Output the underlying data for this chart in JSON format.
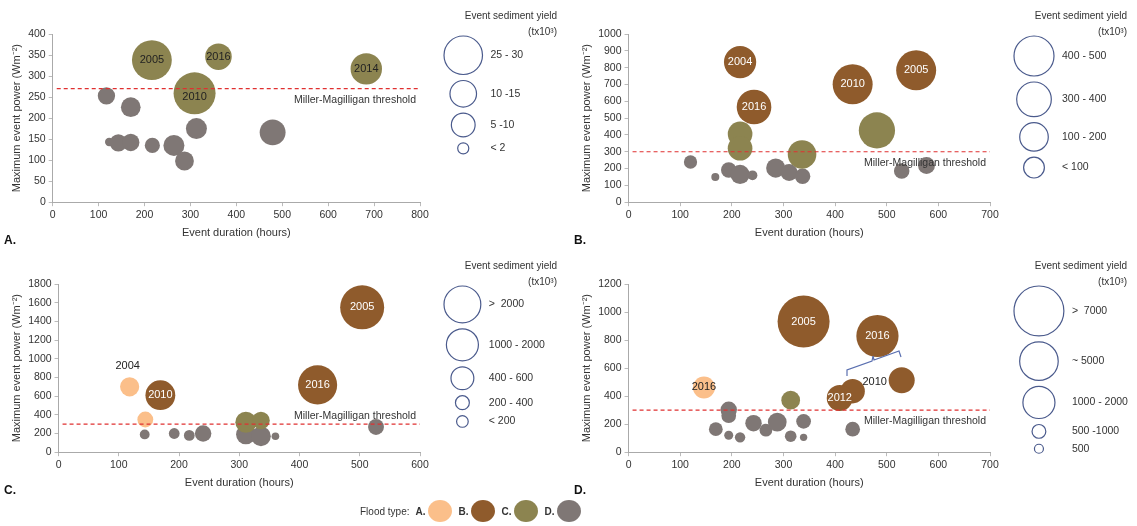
{
  "chart_data": [
    {
      "type": "bubble",
      "title": "A.",
      "xlabel": "Event duration (hours)",
      "ylabel": "Maximum event power (Wm⁻²)",
      "legend_title": "Event sediment yield (tx10³)",
      "xlim": [
        0,
        800
      ],
      "xticks": [
        0,
        100,
        200,
        300,
        400,
        500,
        600,
        700,
        800
      ],
      "ylim": [
        0,
        400
      ],
      "yticks": [
        0,
        50,
        100,
        150,
        200,
        250,
        300,
        350,
        400
      ],
      "marker": "circle",
      "ref_lines": [
        {
          "axis": "y",
          "value": 270,
          "label": "Miller-Magilligan threshold",
          "color": "#e03030",
          "line_style": "dashed"
        }
      ],
      "annotations": [
        {
          "text": "2005",
          "x": 216,
          "y": 338
        },
        {
          "text": "2016",
          "x": 361,
          "y": 346
        },
        {
          "text": "2014",
          "x": 683,
          "y": 317
        },
        {
          "text": "2010",
          "x": 309,
          "y": 250
        }
      ],
      "size_legend": [
        {
          "value": 0.84,
          "label": "25 - 30"
        },
        {
          "value": 0.4,
          "label": "10 -15"
        },
        {
          "value": 0.32,
          "label": "5 -10"
        },
        {
          "value": 0.07,
          "label": "< 2"
        }
      ],
      "series": [
        {
          "color": "#8c8450",
          "x": [
            216,
            361,
            683,
            309
          ],
          "values": [
            338,
            346,
            317,
            259
          ],
          "sizes": [
            0.9,
            0.4,
            0.56,
            1
          ]
        },
        {
          "color": "#7f7775",
          "x": [
            117,
            170,
            123,
            143,
            170,
            217,
            264,
            287,
            313,
            479
          ],
          "values": [
            253,
            226,
            143,
            141,
            142,
            135,
            135,
            98,
            175,
            166
          ],
          "sizes": [
            0.17,
            0.22,
            0.04,
            0.17,
            0.17,
            0.13,
            0.25,
            0.2,
            0.25,
            0.38
          ]
        }
      ]
    },
    {
      "type": "bubble",
      "title": "B.",
      "xlabel": "Event duration (hours)",
      "ylabel": "Maximum event power (Wm⁻²)",
      "legend_title": "Event sediment yield (tx10³)",
      "xlim": [
        0,
        700
      ],
      "xticks": [
        0,
        100,
        200,
        300,
        400,
        500,
        600,
        700
      ],
      "ylim": [
        0,
        1000
      ],
      "yticks": [
        0,
        100,
        200,
        300,
        400,
        500,
        600,
        700,
        800,
        900,
        1000
      ],
      "marker": "circle",
      "ref_lines": [
        {
          "axis": "y",
          "value": 300,
          "label": "Miller-Magilligan threshold",
          "color": "#e03030",
          "line_style": "dashed"
        }
      ],
      "annotations": [
        {
          "text": "2004",
          "x": 216,
          "y": 833
        },
        {
          "text": "2016",
          "x": 243,
          "y": 566
        },
        {
          "text": "2010",
          "x": 434,
          "y": 701
        },
        {
          "text": "2005",
          "x": 557,
          "y": 784
        }
      ],
      "size_legend": [
        {
          "value": 1,
          "label": "400 - 500"
        },
        {
          "value": 0.75,
          "label": "300 - 400"
        },
        {
          "value": 0.51,
          "label": "100 - 200"
        },
        {
          "value": 0.27,
          "label": "< 100"
        }
      ],
      "series": [
        {
          "color": "#8f5b2c",
          "x": [
            216,
            243,
            434,
            557
          ],
          "values": [
            833,
            566,
            701,
            784
          ],
          "sizes": [
            0.65,
            0.75,
            1,
            1
          ]
        },
        {
          "color": "#8c8450",
          "x": [
            216,
            216,
            336,
            481
          ],
          "values": [
            406,
            321,
            284,
            427
          ],
          "sizes": [
            0.38,
            0.38,
            0.51,
            0.82
          ]
        },
        {
          "color": "#7f7775",
          "x": [
            120,
            168,
            194,
            216,
            240,
            285,
            311,
            337,
            529,
            577
          ],
          "values": [
            239,
            150,
            192,
            165,
            160,
            203,
            177,
            154,
            186,
            218
          ],
          "sizes": [
            0.11,
            0.04,
            0.15,
            0.23,
            0.06,
            0.23,
            0.18,
            0.15,
            0.15,
            0.18
          ]
        }
      ]
    },
    {
      "type": "bubble",
      "title": "C.",
      "xlabel": "Event duration (hours)",
      "ylabel": "Maximum event power (Wm⁻²)",
      "legend_title": "Event sediment yield (tx10³)",
      "xlim": [
        0,
        600
      ],
      "xticks": [
        0,
        100,
        200,
        300,
        400,
        500,
        600
      ],
      "ylim": [
        0,
        1800
      ],
      "yticks": [
        0,
        200,
        400,
        600,
        800,
        1000,
        1200,
        1400,
        1600,
        1800
      ],
      "marker": "circle",
      "ref_lines": [
        {
          "axis": "y",
          "value": 300,
          "label": "Miller-Magilligan threshold",
          "color": "#e03030",
          "line_style": "dashed"
        }
      ],
      "annotations": [
        {
          "text": "2004",
          "x": 118,
          "y": 700
        },
        {
          "text": "2010",
          "x": 169,
          "y": 610
        },
        {
          "text": "2016",
          "x": 430,
          "y": 720
        },
        {
          "text": "2005",
          "x": 504,
          "y": 1550
        }
      ],
      "size_legend": [
        {
          "value": 0.7,
          "label": ">  2000"
        },
        {
          "value": 0.53,
          "label": "1000 - 2000"
        },
        {
          "value": 0.27,
          "label": "400 - 600"
        },
        {
          "value": 0.1,
          "label": "200 - 400"
        },
        {
          "value": 0.07,
          "label": "< 200"
        }
      ],
      "series": [
        {
          "color": "#fbbf8a",
          "x": [
            118,
            144
          ],
          "values": [
            700,
            350
          ],
          "sizes": [
            0.19,
            0.13
          ]
        },
        {
          "color": "#8f5b2c",
          "x": [
            169,
            430,
            504
          ],
          "values": [
            610,
            720,
            1550
          ],
          "sizes": [
            0.46,
            0.79,
            1
          ]
        },
        {
          "color": "#8c8450",
          "x": [
            311,
            336
          ],
          "values": [
            320,
            340
          ],
          "sizes": [
            0.23,
            0.16
          ]
        },
        {
          "color": "#7f7775",
          "x": [
            143,
            192,
            217,
            240,
            311,
            336,
            360,
            527
          ],
          "values": [
            190,
            200,
            180,
            200,
            190,
            170,
            170,
            270
          ],
          "sizes": [
            0.05,
            0.06,
            0.06,
            0.14,
            0.2,
            0.2,
            0.03,
            0.13
          ]
        }
      ]
    },
    {
      "type": "bubble",
      "title": "D.",
      "xlabel": "Event duration (hours)",
      "ylabel": "Maximum event power (Wm⁻²)",
      "legend_title": "Event sediment yield (tx10³)",
      "xlim": [
        0,
        700
      ],
      "xticks": [
        0,
        100,
        200,
        300,
        400,
        500,
        600,
        700
      ],
      "ylim": [
        0,
        1200
      ],
      "yticks": [
        0,
        200,
        400,
        600,
        800,
        1000,
        1200
      ],
      "marker": "circle",
      "legend": "bottom",
      "ref_lines": [
        {
          "axis": "y",
          "value": 300,
          "label": "Miller-Magilligan threshold",
          "color": "#e03030",
          "line_style": "dashed"
        }
      ],
      "annotations": [
        {
          "text": "2005",
          "x": 339,
          "y": 932
        },
        {
          "text": "2016",
          "x": 482,
          "y": 829
        },
        {
          "text": "2012",
          "x": 409,
          "y": 387
        },
        {
          "text": "2016",
          "x": 146,
          "y": 462
        },
        {
          "text": "2010",
          "x": 529,
          "y": 513
        },
        "Flood type:"
      ],
      "size_legend": [
        {
          "value": 0.92,
          "label": ">  7000"
        },
        {
          "value": 0.55,
          "label": "~ 5000"
        },
        {
          "value": 0.38,
          "label": "1000 - 2000"
        },
        {
          "value": 0.07,
          "label": "500 -1000"
        },
        {
          "value": 0.03,
          "label": "500"
        }
      ],
      "series": [
        {
          "name": "A.",
          "color": "#fbbf8a",
          "x": [
            146
          ],
          "values": [
            462
          ],
          "sizes": [
            0.18
          ]
        },
        {
          "name": "B.",
          "color": "#8f5b2c",
          "x": [
            339,
            482,
            529,
            434,
            409
          ],
          "values": [
            932,
            829,
            513,
            435,
            387
          ],
          "sizes": [
            1,
            0.66,
            0.25,
            0.22,
            0.25
          ]
        },
        {
          "name": "C.",
          "color": "#8c8450",
          "x": [
            314
          ],
          "values": [
            371
          ],
          "sizes": [
            0.13
          ]
        },
        {
          "name": "D.",
          "color": "#7f7775",
          "x": [
            194,
            194,
            169,
            194,
            216,
            242,
            266,
            288,
            314,
            339,
            339,
            434
          ],
          "values": [
            303,
            260,
            164,
            121,
            106,
            207,
            157,
            215,
            114,
            220,
            106,
            164
          ],
          "sizes": [
            0.1,
            0.08,
            0.07,
            0.03,
            0.04,
            0.1,
            0.06,
            0.13,
            0.05,
            0.08,
            0.02,
            0.08
          ]
        }
      ]
    }
  ]
}
